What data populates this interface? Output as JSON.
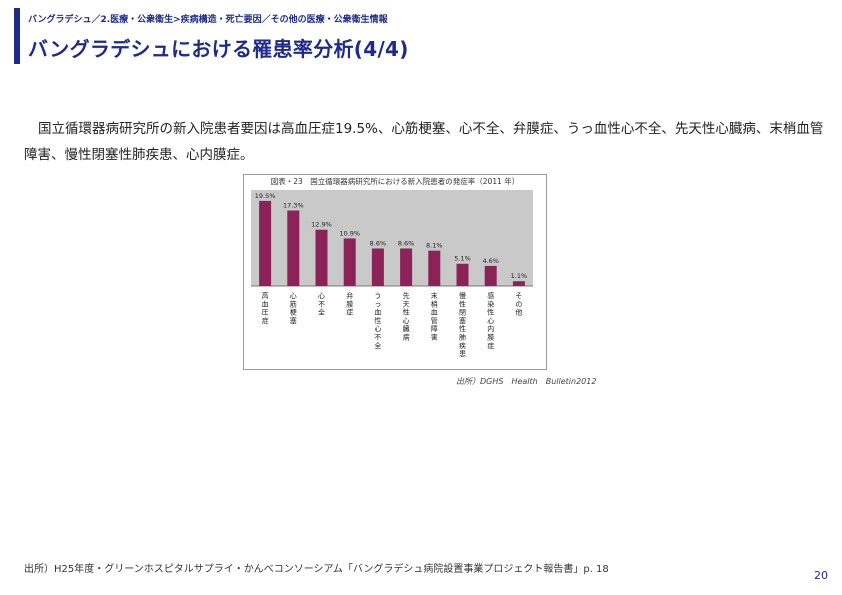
{
  "header": {
    "breadcrumb": "バングラデシュ／2.医療・公衆衛生>疾病構造・死亡要因／その他の医療・公衆衛生情報",
    "title": "バングラデシュにおける罹患率分析(4/4)"
  },
  "intro": "国立循環器病研究所の新入院患者要因は高血圧症19.5%、心筋梗塞、心不全、弁膜症、うっ血性心不全、先天性心臓病、末梢血管障害、慢性閉塞性肺疾患、心内膜症。",
  "chart_data": {
    "type": "bar",
    "title": "図表・23　国立循環器病研究所における新入院患者の発症率（2011 年）",
    "categories": [
      "高血圧症",
      "心筋梗塞",
      "心不全",
      "弁膜症",
      "うっ血性心不全",
      "先天性心臓病",
      "末梢血管障害",
      "慢性閉塞性肺疾患",
      "感染性心内膜症",
      "その他"
    ],
    "values": [
      19.5,
      17.3,
      12.9,
      10.9,
      8.6,
      8.6,
      8.1,
      5.1,
      4.6,
      1.1
    ],
    "value_labels": [
      "19.5%",
      "17.3%",
      "12.9%",
      "10.9%",
      "8.6%",
      "8.6%",
      "8.1%",
      "5.1%",
      "4.6%",
      "1.1%"
    ],
    "ylim": [
      0,
      22
    ],
    "bar_color": "#8b2358",
    "plot_background": "#c9c9c9",
    "xlabel": "",
    "ylabel": ""
  },
  "figure_source": "出所）DGHS　Health　Bulletin2012",
  "footer_source": "出所）H25年度・グリーンホスピタルサプライ・かんべコンソーシアム「バングラデシュ病院設置事業プロジェクト報告書」p. 18",
  "page_number": "20",
  "colors": {
    "accent": "#1f2a8a"
  }
}
